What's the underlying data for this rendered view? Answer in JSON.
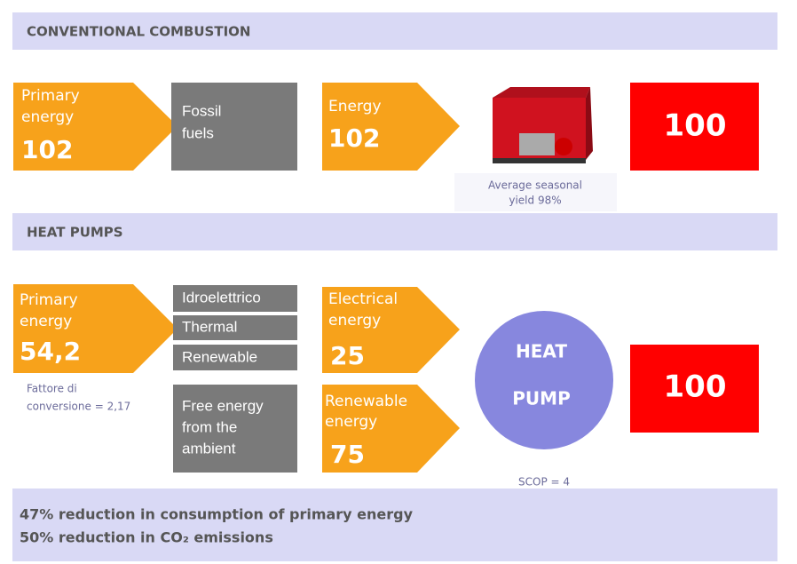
{
  "sections": [
    {
      "title": "CONVENTIONAL COMBUSTION",
      "primary": {
        "label": [
          "Primary",
          "energy"
        ],
        "value": "102"
      },
      "source": [
        "Fossil",
        "fuels"
      ],
      "energy": {
        "label": [
          "Energy"
        ],
        "value": "102"
      },
      "device_caption": [
        "Average seasonal",
        "yield 98%"
      ],
      "output": "100"
    },
    {
      "title": "HEAT PUMPS",
      "primary": {
        "label": [
          "Primary",
          "energy"
        ],
        "value": "54,2",
        "note": [
          "Fattore di",
          "conversione = 2,17"
        ]
      },
      "sources": [
        "Idroelettrico",
        "Thermal",
        "Renewable"
      ],
      "ambient": [
        "Free energy",
        "from the",
        "ambient"
      ],
      "electrical": {
        "label": [
          "Electrical",
          "energy"
        ],
        "value": "25"
      },
      "renewable": {
        "label": [
          "Renewable",
          "energy"
        ],
        "value": "75"
      },
      "device": [
        "HEAT",
        "PUMP"
      ],
      "device_caption": "SCOP = 4",
      "output": "100"
    }
  ],
  "footer": [
    "47% reduction in consumption of primary energy",
    "50% reduction in CO₂ emissions"
  ]
}
